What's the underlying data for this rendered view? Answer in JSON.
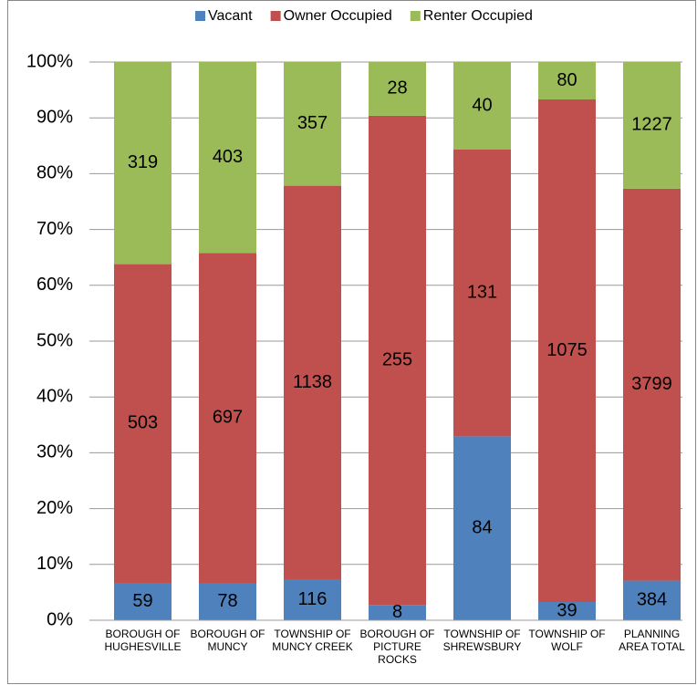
{
  "chart_data": {
    "type": "bar",
    "stacked": "percent",
    "categories": [
      "BOROUGH OF HUGHESVILLE",
      "BOROUGH OF MUNCY",
      "TOWNSHIP OF MUNCY CREEK",
      "BOROUGH OF PICTURE ROCKS",
      "TOWNSHIP OF SHREWSBURY",
      "TOWNSHIP OF WOLF",
      "PLANNING AREA TOTAL"
    ],
    "series": [
      {
        "name": "Vacant",
        "color": "#4f81bd",
        "values": [
          59,
          78,
          116,
          8,
          84,
          39,
          384
        ]
      },
      {
        "name": "Owner Occupied",
        "color": "#c0504d",
        "values": [
          503,
          697,
          1138,
          255,
          131,
          1075,
          3799
        ]
      },
      {
        "name": "Renter Occupied",
        "color": "#9bbb59",
        "values": [
          319,
          403,
          357,
          28,
          40,
          80,
          1227
        ]
      }
    ],
    "ylim": [
      0,
      100
    ],
    "yticks": [
      {
        "value": 0,
        "label": "0%"
      },
      {
        "value": 10,
        "label": "10%"
      },
      {
        "value": 20,
        "label": "20%"
      },
      {
        "value": 30,
        "label": "30%"
      },
      {
        "value": 40,
        "label": "40%"
      },
      {
        "value": 50,
        "label": "50%"
      },
      {
        "value": 60,
        "label": "60%"
      },
      {
        "value": 70,
        "label": "70%"
      },
      {
        "value": 80,
        "label": "80%"
      },
      {
        "value": 90,
        "label": "90%"
      },
      {
        "value": 100,
        "label": "100%"
      }
    ],
    "grid": true,
    "legend": "top"
  }
}
